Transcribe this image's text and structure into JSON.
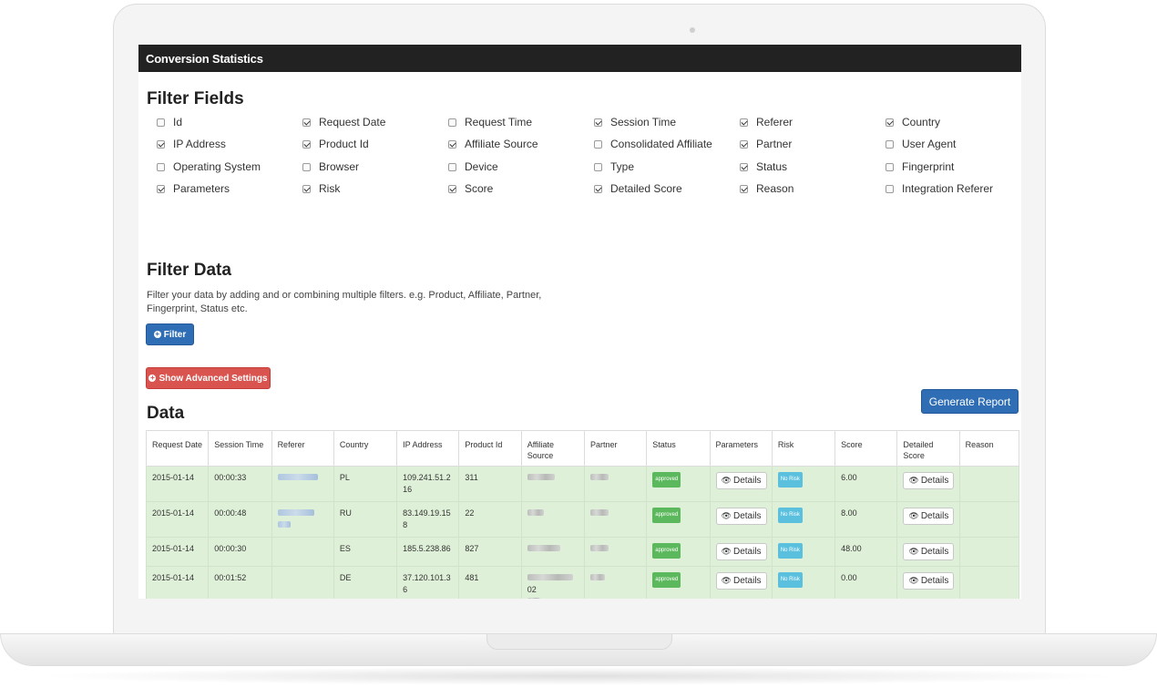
{
  "window": {
    "title": "Conversion Statistics"
  },
  "filter_fields": {
    "heading": "Filter Fields",
    "rows": [
      [
        {
          "label": "Id",
          "checked": false
        },
        {
          "label": "Request Date",
          "checked": true
        },
        {
          "label": "Request Time",
          "checked": false
        },
        {
          "label": "Session Time",
          "checked": true
        },
        {
          "label": "Referer",
          "checked": true
        },
        {
          "label": "Country",
          "checked": true
        }
      ],
      [
        {
          "label": "IP Address",
          "checked": true
        },
        {
          "label": "Product Id",
          "checked": true
        },
        {
          "label": "Affiliate Source",
          "checked": true
        },
        {
          "label": "Consolidated Affiliate",
          "checked": false
        },
        {
          "label": "Partner",
          "checked": true
        },
        {
          "label": "User Agent",
          "checked": false
        }
      ],
      [
        {
          "label": "Operating System",
          "checked": false
        },
        {
          "label": "Browser",
          "checked": false
        },
        {
          "label": "Device",
          "checked": false
        },
        {
          "label": "Type",
          "checked": false
        },
        {
          "label": "Status",
          "checked": true
        },
        {
          "label": "Fingerprint",
          "checked": false
        }
      ],
      [
        {
          "label": "Parameters",
          "checked": true
        },
        {
          "label": "Risk",
          "checked": true
        },
        {
          "label": "Score",
          "checked": true
        },
        {
          "label": "Detailed Score",
          "checked": true
        },
        {
          "label": "Reason",
          "checked": true
        },
        {
          "label": "Integration Referer",
          "checked": false
        }
      ]
    ]
  },
  "filter_data": {
    "heading": "Filter Data",
    "description": "Filter your data by adding and or combining multiple filters. e.g. Product, Affiliate, Partner, Fingerprint, Status etc.",
    "filter_button": "Filter",
    "advanced_button": "Show Advanced Settings"
  },
  "data_section": {
    "heading": "Data",
    "generate_button": "Generate Report",
    "columns": [
      "Request Date",
      "Session Time",
      "Referer",
      "Country",
      "IP Address",
      "Product Id",
      "Affiliate Source",
      "Partner",
      "Status",
      "Parameters",
      "Risk",
      "Score",
      "Detailed Score",
      "Reason"
    ],
    "rows": [
      {
        "request_date": "2015-01-14",
        "session_time": "00:00:33",
        "country": "PL",
        "ip": "109.241.51.216",
        "product_id": "311",
        "affiliate_suffix": "",
        "status": "approved",
        "params": "Details",
        "risk": "No Risk",
        "score": "6.00",
        "detailed": "Details",
        "reason": ""
      },
      {
        "request_date": "2015-01-14",
        "session_time": "00:00:48",
        "country": "RU",
        "ip": "83.149.19.158",
        "product_id": "22",
        "affiliate_suffix": "",
        "status": "approved",
        "params": "Details",
        "risk": "No Risk",
        "score": "8.00",
        "detailed": "Details",
        "reason": ""
      },
      {
        "request_date": "2015-01-14",
        "session_time": "00:00:30",
        "country": "ES",
        "ip": "185.5.238.86",
        "product_id": "827",
        "affiliate_suffix": "",
        "status": "approved",
        "params": "Details",
        "risk": "No Risk",
        "score": "48.00",
        "detailed": "Details",
        "reason": ""
      },
      {
        "request_date": "2015-01-14",
        "session_time": "00:01:52",
        "country": "DE",
        "ip": "37.120.101.36",
        "product_id": "481",
        "affiliate_suffix": "02",
        "status": "approved",
        "params": "Details",
        "risk": "No Risk",
        "score": "0.00",
        "detailed": "Details",
        "reason": ""
      }
    ]
  },
  "colors": {
    "titlebar": "#222222",
    "primary": "#2f6eb4",
    "danger": "#d9534f",
    "row_success": "#dff0d8",
    "badge_success": "#5cb85c",
    "badge_info": "#5bc0de"
  }
}
